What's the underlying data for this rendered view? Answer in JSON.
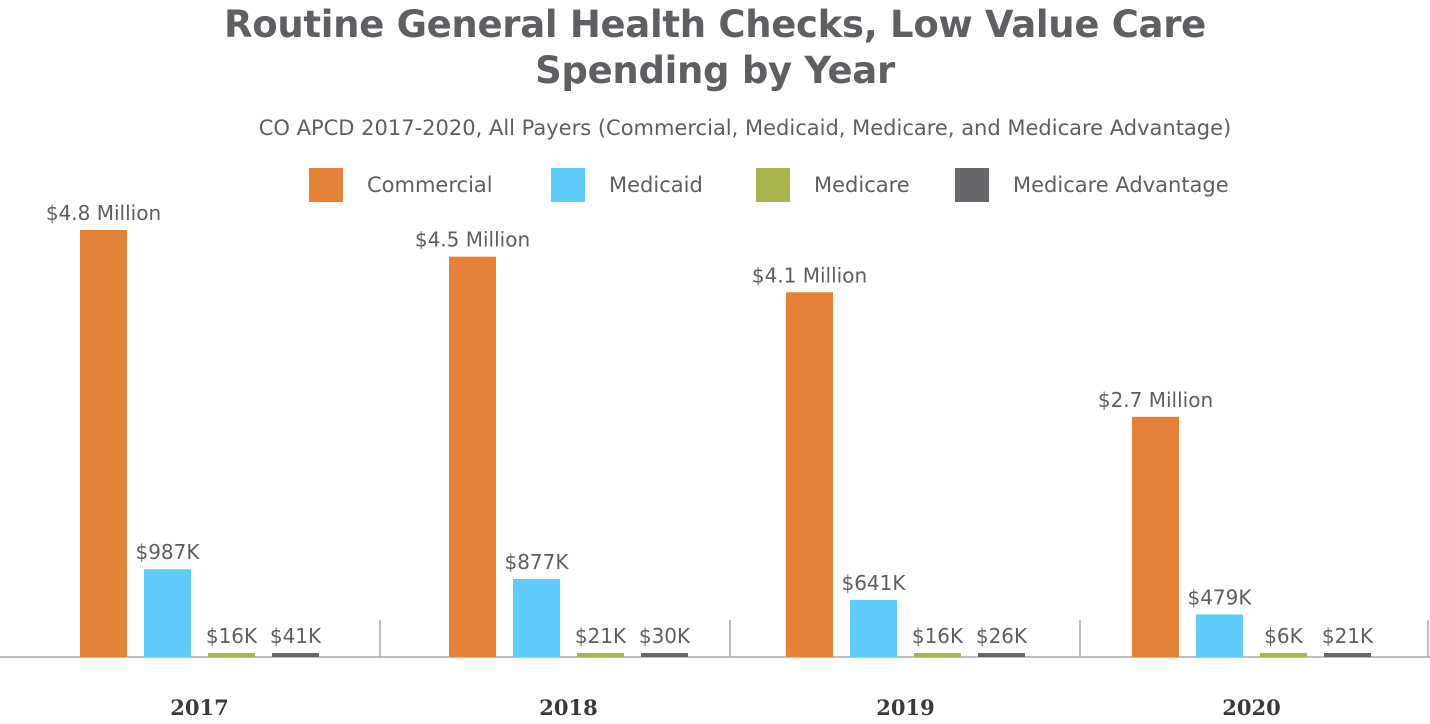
{
  "title_line1": "Routine General Health Checks, Low Value Care",
  "title_line2": "Spending by Year",
  "subtitle": "CO APCD 2017-2020,  All Payers (Commercial, Medicaid, Medicare, and Medicare Advantage)",
  "legend": [
    {
      "label": "Commercial",
      "color": "#e58038"
    },
    {
      "label": "Medicaid",
      "color": "#5ecbfb"
    },
    {
      "label": "Medicare",
      "color": "#a9b44f"
    },
    {
      "label": "Medicare Advantage",
      "color": "#67676b"
    }
  ],
  "chart_data": {
    "type": "bar",
    "title": "Routine General Health Checks, Low Value Care Spending by Year",
    "subtitle": "CO APCD 2017-2020,  All Payers (Commercial, Medicaid, Medicare, and Medicare Advantage)",
    "categories": [
      "2017",
      "2018",
      "2019",
      "2020"
    ],
    "series": [
      {
        "name": "Commercial",
        "color": "#e58038",
        "values": [
          4800000,
          4500000,
          4100000,
          2700000
        ],
        "labels": [
          "$4.8 Million",
          "$4.5 Million",
          "$4.1 Million",
          "$2.7 Million"
        ]
      },
      {
        "name": "Medicaid",
        "color": "#5ecbfb",
        "values": [
          987000,
          877000,
          641000,
          479000
        ],
        "labels": [
          "$987K",
          "$877K",
          "$641K",
          "$479K"
        ]
      },
      {
        "name": "Medicare",
        "color": "#a9b44f",
        "values": [
          16000,
          21000,
          16000,
          6000
        ],
        "labels": [
          "$16K",
          "$21K",
          "$16K",
          "$6K"
        ]
      },
      {
        "name": "Medicare Advantage",
        "color": "#67676b",
        "values": [
          41000,
          30000,
          26000,
          21000
        ],
        "labels": [
          "$41K",
          "$30K",
          "$26K",
          "$21K"
        ]
      }
    ],
    "xlabel": "",
    "ylabel": "",
    "grid": false,
    "legend_position": "top"
  }
}
